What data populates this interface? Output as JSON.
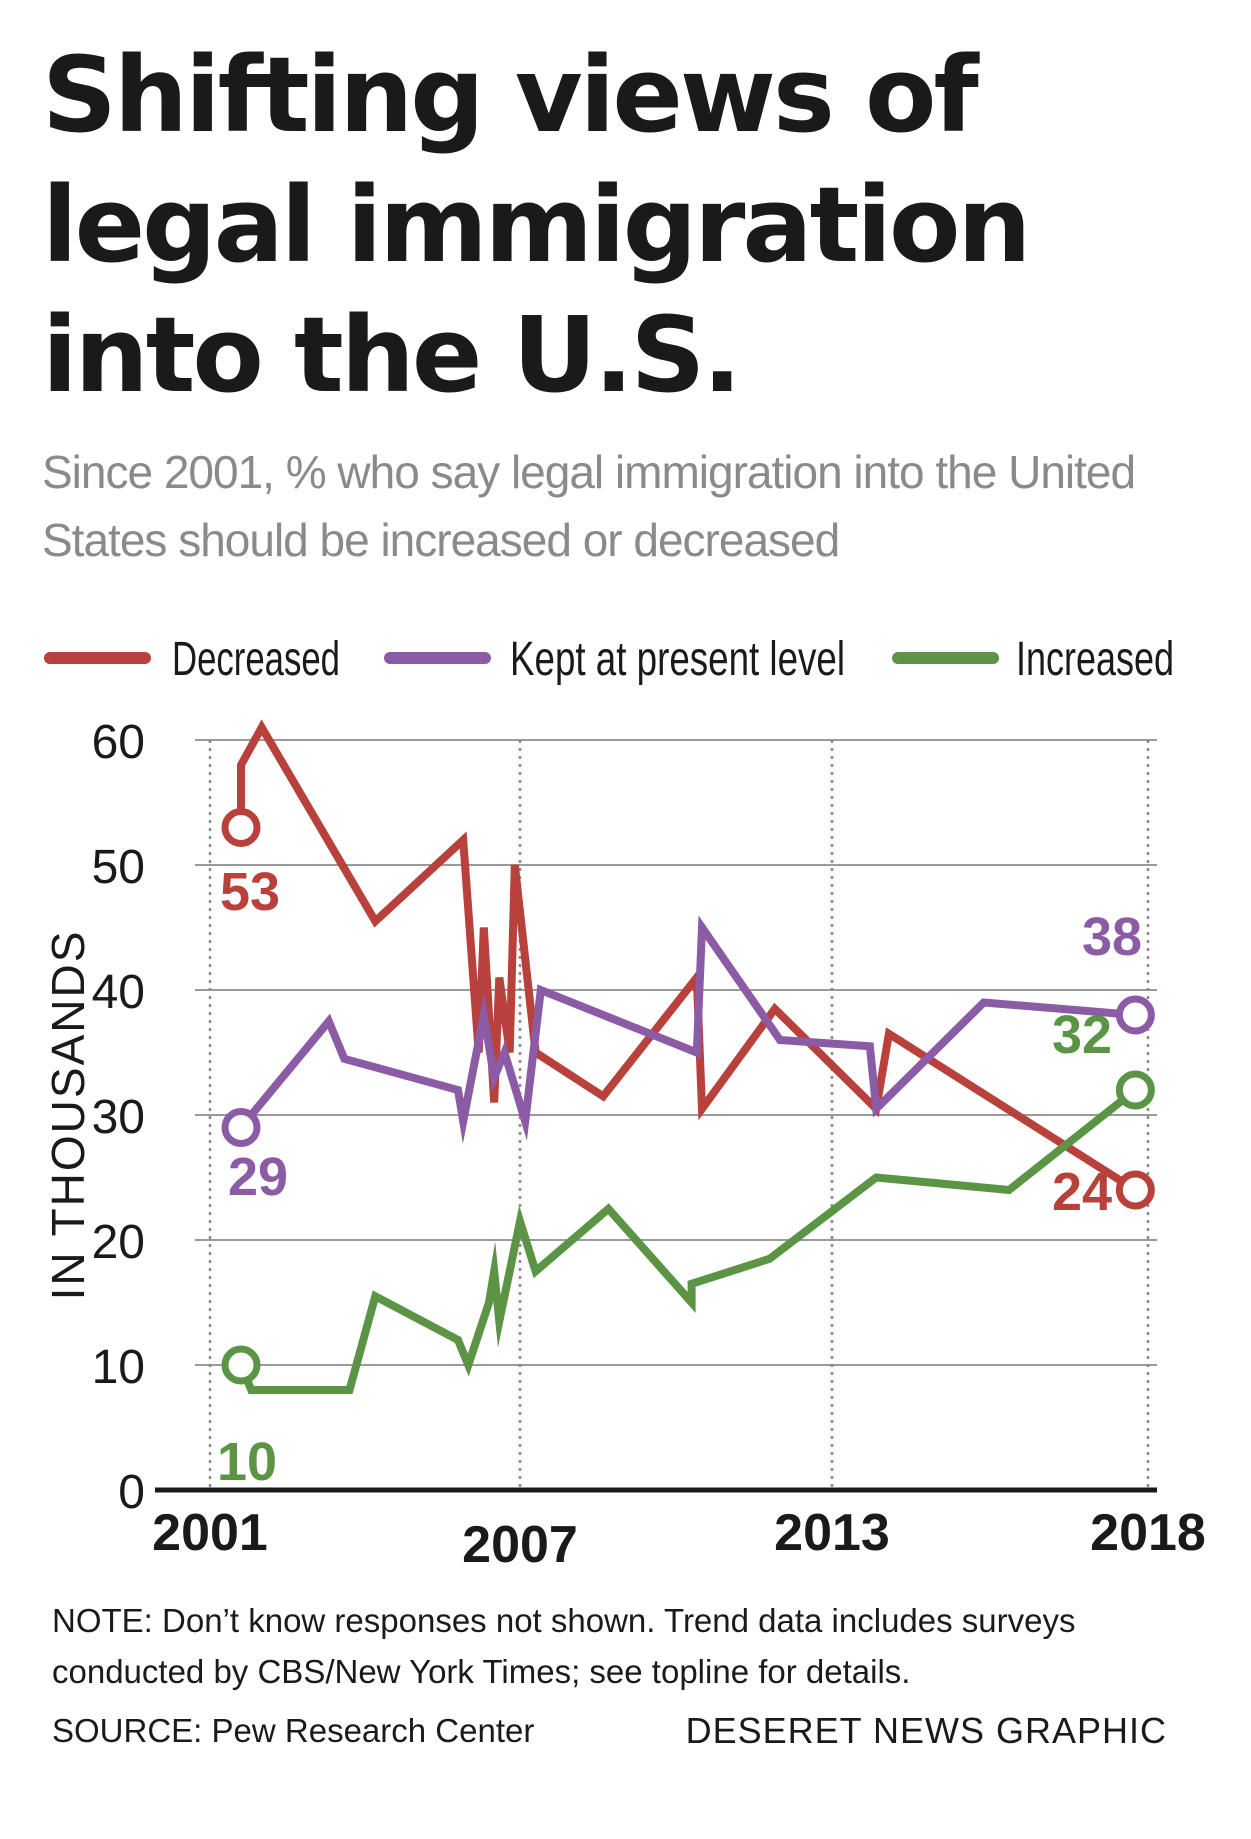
{
  "header": {
    "title": "Shifting views of legal immigration into the U.S.",
    "subtitle": "Since 2001, % who say legal immigration into the United States should be increased or decreased"
  },
  "footer": {
    "note": "NOTE: Don’t know responses not shown. Trend data includes surveys conducted by CBS/New York Times; see topline for details.",
    "source": "SOURCE: Pew Research Center",
    "credit": "DESERET NEWS GRAPHIC"
  },
  "chart_data": {
    "type": "line",
    "ylabel": "IN THOUSANDS",
    "ylim": [
      0,
      60
    ],
    "yticks": [
      0,
      10,
      20,
      30,
      40,
      50,
      60
    ],
    "xlim": [
      2001,
      2018
    ],
    "xticks": [
      2001,
      2007,
      2013,
      2018
    ],
    "grid": true,
    "legend_position": "top",
    "series": [
      {
        "name": "Decreased",
        "color": "#b8413c",
        "x": [
          2001.6,
          2001.6,
          2002.0,
          2004.2,
          2005.9,
          2006.2,
          2006.3,
          2006.5,
          2006.6,
          2006.8,
          2006.9,
          2007.3,
          2008.6,
          2010.4,
          2010.5,
          2011.9,
          2013.7,
          2013.9,
          2017.8
        ],
        "y": [
          53,
          58,
          61,
          45.5,
          52,
          35,
          45,
          31,
          41,
          35,
          50,
          35,
          31.5,
          41,
          30.5,
          38.5,
          30.5,
          36.5,
          24
        ],
        "end_labels": {
          "start": "53",
          "end": "24"
        }
      },
      {
        "name": "Kept at present level",
        "color": "#8c5ba6",
        "x": [
          2001.6,
          2003.3,
          2003.6,
          2005.8,
          2005.9,
          2006.3,
          2006.5,
          2006.7,
          2007.1,
          2007.4,
          2010.4,
          2010.5,
          2012.0,
          2013.6,
          2013.7,
          2015.4,
          2017.8
        ],
        "y": [
          29,
          37.5,
          34.5,
          32,
          29.5,
          38,
          33,
          35,
          29.5,
          40,
          35,
          45,
          36,
          35.5,
          30.5,
          39,
          38
        ],
        "end_labels": {
          "start": "29",
          "end": "38"
        }
      },
      {
        "name": "Increased",
        "color": "#5a9444",
        "x": [
          2001.6,
          2001.8,
          2003.7,
          2004.2,
          2005.8,
          2006.0,
          2006.4,
          2006.5,
          2006.6,
          2007.0,
          2007.3,
          2008.7,
          2010.3,
          2010.3,
          2011.8,
          2013.7,
          2015.8,
          2017.8
        ],
        "y": [
          10,
          8,
          8,
          15.5,
          12,
          10,
          15,
          17.5,
          13.5,
          21.5,
          17.5,
          22.5,
          15,
          16.5,
          18.5,
          25,
          24,
          32
        ],
        "end_labels": {
          "start": "10",
          "end": "32"
        }
      }
    ]
  }
}
